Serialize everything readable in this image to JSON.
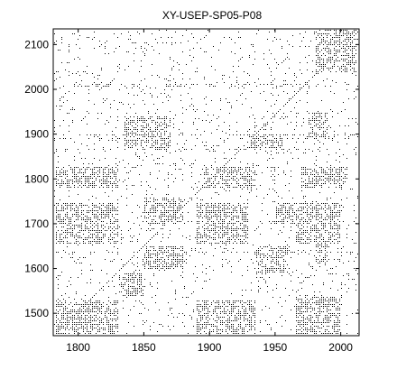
{
  "chart_data": {
    "type": "heatmap",
    "title": "XY-USEP-SP05-P08",
    "xlabel": "",
    "ylabel": "",
    "xlim": [
      1781,
      2014
    ],
    "ylim": [
      1450,
      2135
    ],
    "x_ticks": [
      1800,
      1850,
      1900,
      1950,
      2000
    ],
    "y_ticks": [
      1500,
      1600,
      1700,
      1800,
      1900,
      2000,
      2100
    ],
    "grid": false,
    "colors": {
      "on": "#000000",
      "off": "#ffffff"
    },
    "description_type": "recurrence_plot",
    "dense_regions": [
      {
        "x": [
          1783,
          1830
        ],
        "y": [
          1780,
          1830
        ]
      },
      {
        "x": [
          1783,
          1830
        ],
        "y": [
          1655,
          1750
        ]
      },
      {
        "x": [
          1783,
          1830
        ],
        "y": [
          1455,
          1530
        ]
      },
      {
        "x": [
          1830,
          1850
        ],
        "y": [
          1540,
          1590
        ]
      },
      {
        "x": [
          1835,
          1870
        ],
        "y": [
          1870,
          1940
        ]
      },
      {
        "x": [
          1850,
          1880
        ],
        "y": [
          1600,
          1650
        ]
      },
      {
        "x": [
          1850,
          1880
        ],
        "y": [
          1700,
          1760
        ]
      },
      {
        "x": [
          1890,
          1935
        ],
        "y": [
          1455,
          1530
        ]
      },
      {
        "x": [
          1890,
          1930
        ],
        "y": [
          1655,
          1750
        ]
      },
      {
        "x": [
          1895,
          1935
        ],
        "y": [
          1780,
          1830
        ]
      },
      {
        "x": [
          1930,
          1955
        ],
        "y": [
          1870,
          1900
        ]
      },
      {
        "x": [
          1935,
          1960
        ],
        "y": [
          1590,
          1650
        ]
      },
      {
        "x": [
          1950,
          1975
        ],
        "y": [
          1700,
          1750
        ]
      },
      {
        "x": [
          1965,
          2000
        ],
        "y": [
          1455,
          1540
        ]
      },
      {
        "x": [
          1965,
          2000
        ],
        "y": [
          1655,
          1750
        ]
      },
      {
        "x": [
          1970,
          2005
        ],
        "y": [
          1780,
          1830
        ]
      },
      {
        "x": [
          1975,
          1990
        ],
        "y": [
          1890,
          1950
        ]
      },
      {
        "x": [
          1980,
          1990
        ],
        "y": [
          1610,
          1660
        ]
      },
      {
        "x": [
          1980,
          2012
        ],
        "y": [
          2040,
          2135
        ]
      }
    ]
  }
}
